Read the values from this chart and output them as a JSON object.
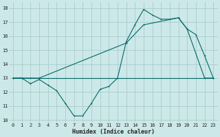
{
  "xlabel": "Humidex (Indice chaleur)",
  "bg_color": "#cce8e8",
  "grid_color": "#aacccc",
  "line_color": "#006666",
  "xlim": [
    -0.5,
    23.5
  ],
  "ylim": [
    9.8,
    18.4
  ],
  "xticks": [
    0,
    1,
    2,
    3,
    4,
    5,
    6,
    7,
    8,
    9,
    10,
    11,
    12,
    13,
    14,
    15,
    16,
    17,
    18,
    19,
    20,
    21,
    22,
    23
  ],
  "yticks": [
    10,
    11,
    12,
    13,
    14,
    15,
    16,
    17,
    18
  ],
  "line1_x": [
    0,
    1,
    2,
    3,
    4,
    5,
    6,
    7,
    8,
    9,
    10,
    11,
    12,
    13,
    14,
    15,
    16,
    17,
    18,
    19,
    20,
    21,
    22,
    23
  ],
  "line1_y": [
    13,
    13,
    12.6,
    12.9,
    12.5,
    12.1,
    11.2,
    10.3,
    10.3,
    11.2,
    12.2,
    12.4,
    13.0,
    15.6,
    16.8,
    17.9,
    17.5,
    17.2,
    17.2,
    17.3,
    16.5,
    16.1,
    14.6,
    13.0
  ],
  "line2_x": [
    0,
    1,
    2,
    3,
    23
  ],
  "line2_y": [
    13,
    13,
    13,
    13,
    13
  ],
  "line3_x": [
    0,
    3,
    13,
    15,
    19,
    20,
    22,
    23
  ],
  "line3_y": [
    13,
    13,
    15.5,
    16.8,
    17.3,
    16.5,
    13.0,
    13.0
  ],
  "tick_fontsize": 5.0,
  "xlabel_fontsize": 6.0
}
